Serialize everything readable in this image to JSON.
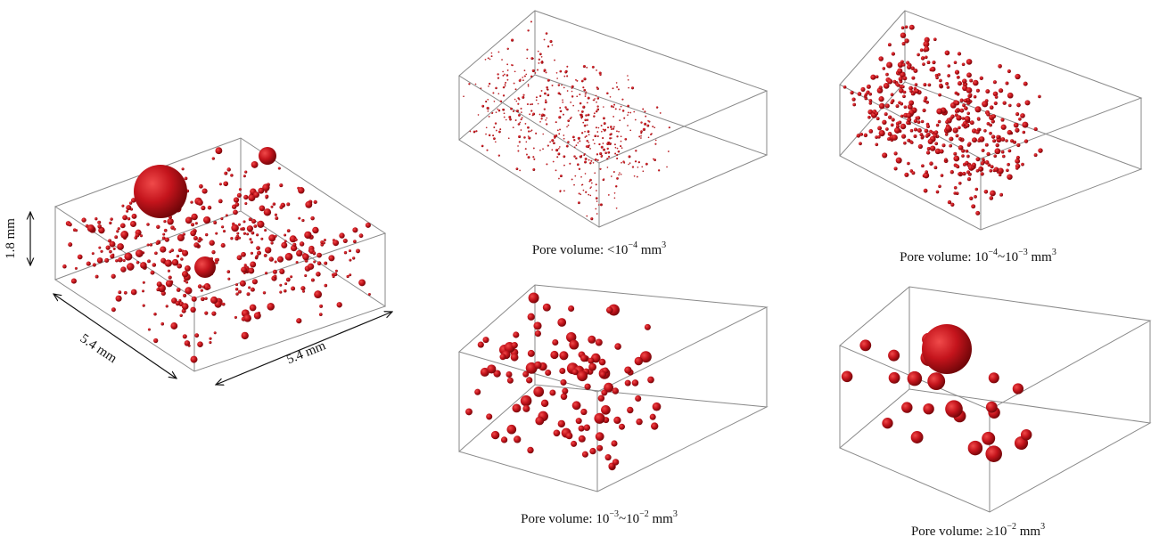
{
  "dimensions": {
    "height": "1.8 mm",
    "depth": "5.4 mm",
    "width": "5.4 mm"
  },
  "panels": [
    {
      "caption": [
        "Pore volume: <10",
        "−4",
        " mm",
        "3"
      ]
    },
    {
      "caption": [
        "Pore volume: 10",
        "−4",
        "~10",
        "−3",
        " mm",
        "3"
      ]
    },
    {
      "caption": [
        "Pore volume: 10",
        "−3",
        "~10",
        "−2",
        " mm",
        "3"
      ]
    },
    {
      "caption": [
        "Pore volume: ≥10",
        "−2",
        " mm",
        "3"
      ]
    }
  ]
}
